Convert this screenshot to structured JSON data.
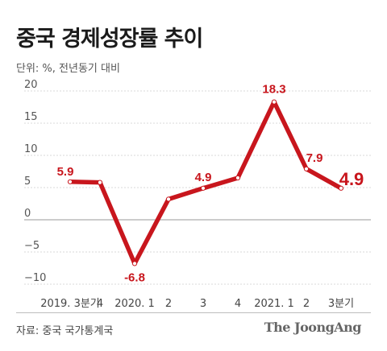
{
  "title": "중국 경제성장률 추이",
  "unit": "단위: %, 전년동기 대비",
  "source": "자료: 중국 국가통계국",
  "brand": "The JoongAng",
  "colors": {
    "line": "#c8161d",
    "label": "#c8161d",
    "grid": "#d9d9d9",
    "zero": "#9a9a9a"
  },
  "chart_data": {
    "type": "line",
    "title": "중국 경제성장률 추이",
    "ylabel": "단위: %, 전년동기 대비",
    "xlabel": "",
    "categories": [
      "2019. 3분기",
      "4",
      "2020. 1",
      "2",
      "3",
      "4",
      "2021. 1",
      "2",
      "3분기"
    ],
    "tick_labels": [
      "2019. 3분기",
      "4",
      "2020. 1",
      "2",
      "3",
      "4",
      "2021. 1",
      "2",
      "3분기"
    ],
    "values": [
      5.9,
      5.8,
      -6.8,
      3.2,
      4.9,
      6.5,
      18.3,
      7.9,
      4.9
    ],
    "data_labels": [
      {
        "index": 0,
        "text": "5.9",
        "emphasis": false
      },
      {
        "index": 2,
        "text": "-6.8",
        "emphasis": false
      },
      {
        "index": 4,
        "text": "4.9",
        "emphasis": false
      },
      {
        "index": 6,
        "text": "18.3",
        "emphasis": false
      },
      {
        "index": 7,
        "text": "7.9",
        "emphasis": false
      },
      {
        "index": 8,
        "text": "4.9",
        "emphasis": true
      }
    ],
    "yticks": [
      20,
      15,
      10,
      5,
      0,
      -5,
      -10
    ],
    "ytick_labels": [
      "20",
      "15",
      "10",
      "5",
      "0",
      "−5",
      "−10"
    ],
    "ylim": [
      -10,
      20
    ],
    "grid": true
  }
}
